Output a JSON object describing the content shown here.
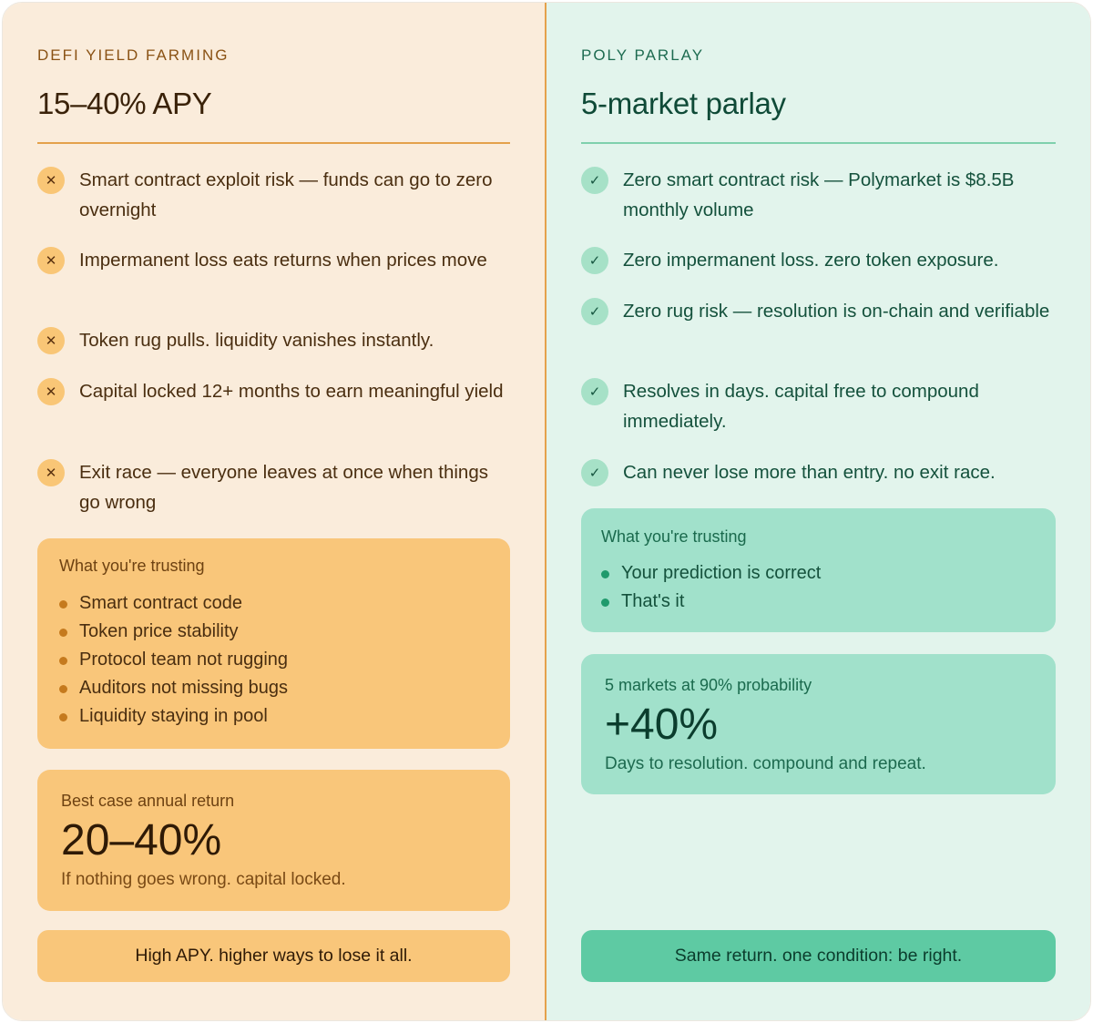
{
  "defi": {
    "eyebrow": "DEFI YIELD FARMING",
    "heading": "15–40% APY",
    "risk_icon": "x-icon",
    "items": [
      "Smart contract exploit risk — funds can go to zero overnight",
      "Impermanent loss eats returns when prices move",
      "Token rug pulls. liquidity vanishes instantly.",
      "Capital locked 12+ months to earn meaningful yield",
      "Exit race — everyone leaves at once when things go wrong"
    ],
    "trust_title": "What you're trusting",
    "trust_items": [
      "Smart contract code",
      "Token price stability",
      "Protocol team not rugging",
      "Auditors not missing bugs",
      "Liquidity staying in pool"
    ],
    "return_label": "Best case annual return",
    "return_value": "20–40%",
    "return_note": "If nothing goes wrong. capital locked.",
    "cta": "High APY. higher ways to lose it all.",
    "colors": {
      "background": "#faecdb",
      "accent": "#e4a14b",
      "panel": "#f9c67a"
    }
  },
  "poly": {
    "eyebrow": "POLY PARLAY",
    "heading": "5-market parlay",
    "check_icon": "check-icon",
    "items": [
      "Zero smart contract risk — Polymarket is $8.5B monthly volume",
      "Zero impermanent loss. zero token exposure.",
      "Zero rug risk — resolution is on-chain and verifiable",
      "Resolves in days. capital free to compound immediately.",
      "Can never lose more than entry. no exit race."
    ],
    "trust_title": "What you're trusting",
    "trust_items": [
      "Your prediction is correct",
      "That's it"
    ],
    "return_label": "5 markets at 90% probability",
    "return_value": "+40%",
    "return_note": "Days to resolution. compound and repeat.",
    "cta": "Same return. one condition: be right.",
    "colors": {
      "background": "#e2f4ec",
      "accent": "#7fd0ad",
      "panel": "#a1e1cb"
    }
  }
}
